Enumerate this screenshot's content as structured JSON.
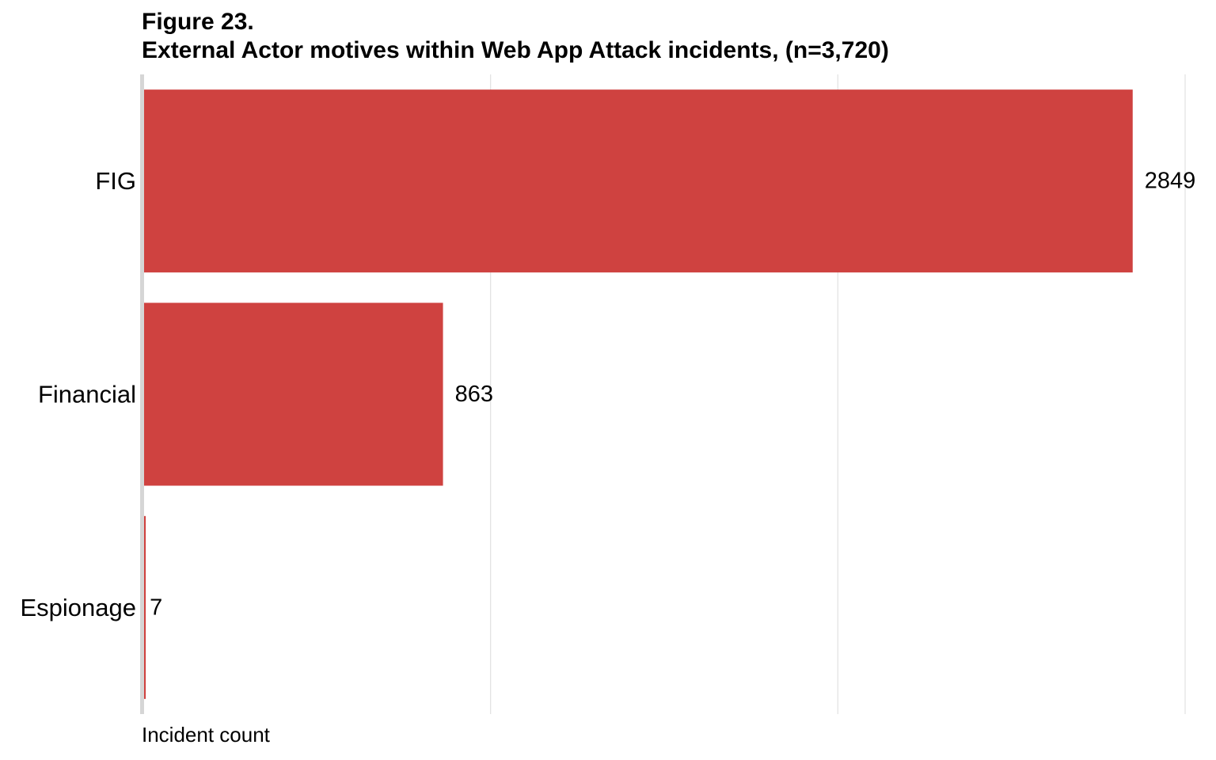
{
  "figure_label": "Figure 23.",
  "chart_data": {
    "type": "bar",
    "orientation": "horizontal",
    "title": "External Actor motives within Web App Attack incidents, (n=3,720)",
    "categories": [
      "FIG",
      "Financial",
      "Espionage"
    ],
    "values": [
      2849,
      863,
      7
    ],
    "data_labels": [
      "2849",
      "863",
      "7"
    ],
    "xlabel": "Incident count",
    "ylabel": "",
    "xlim": [
      0,
      3000
    ],
    "gridlines_at": [
      1000,
      2000,
      3000
    ],
    "grid": true,
    "x_tick_labels_shown": false,
    "legend": "none",
    "bar_color": "#cf4240"
  }
}
